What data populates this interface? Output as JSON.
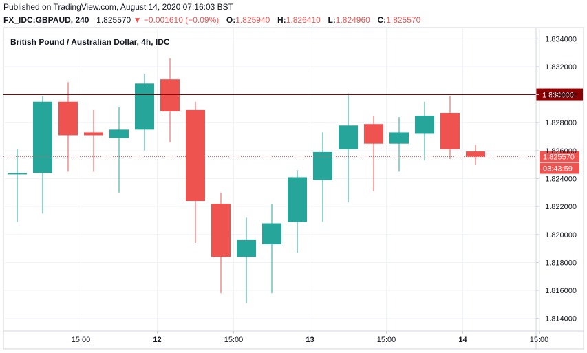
{
  "header": {
    "published": "Published on TradingView.com, August 14, 2020 07:16:03 BST",
    "symbol": "FX_IDC:GBPAUD, 240",
    "last": "1.825570",
    "arrow": "▼",
    "change": "−0.001610 (−0.09%)",
    "o_label": "O:",
    "o_value": "1.825940",
    "h_label": "H:",
    "h_value": "1.826410",
    "l_label": "L:",
    "l_value": "1.824960",
    "c_label": "C:",
    "c_value": "1.825570"
  },
  "colors": {
    "up": "#26a69a",
    "down": "#ef5350",
    "level_line": "#8b0000",
    "grid": "#f0f3fa",
    "axis": "#d1d4dc"
  },
  "chart_data": {
    "type": "candlestick",
    "title": "British Pound / Australian Dollar, 4h, IDC",
    "ylim": [
      1.8131,
      1.8348
    ],
    "y_ticks": [
      "1.834000",
      "1.832000",
      "1.830000",
      "1.828000",
      "1.826000",
      "1.824000",
      "1.822000",
      "1.820000",
      "1.818000",
      "1.816000",
      "1.814000"
    ],
    "x_ticks": [
      {
        "label": "15:00",
        "day": false,
        "index": 2.5
      },
      {
        "label": "12",
        "day": true,
        "index": 5.5
      },
      {
        "label": "15:00",
        "day": false,
        "index": 8.5
      },
      {
        "label": "13",
        "day": true,
        "index": 11.5
      },
      {
        "label": "15:00",
        "day": false,
        "index": 14.5
      },
      {
        "label": "14",
        "day": true,
        "index": 17.5
      },
      {
        "label": "15:00",
        "day": false,
        "index": 20.5
      }
    ],
    "candles": [
      {
        "o": 1.8243,
        "h": 1.8261,
        "l": 1.8209,
        "c": 1.8244
      },
      {
        "o": 1.8244,
        "h": 1.8299,
        "l": 1.8215,
        "c": 1.8295
      },
      {
        "o": 1.8295,
        "h": 1.8309,
        "l": 1.8245,
        "c": 1.8271
      },
      {
        "o": 1.8273,
        "h": 1.8289,
        "l": 1.8245,
        "c": 1.8271
      },
      {
        "o": 1.8269,
        "h": 1.8291,
        "l": 1.823,
        "c": 1.8275
      },
      {
        "o": 1.8275,
        "h": 1.8315,
        "l": 1.826,
        "c": 1.8308
      },
      {
        "o": 1.8311,
        "h": 1.8326,
        "l": 1.8266,
        "c": 1.8288
      },
      {
        "o": 1.8289,
        "h": 1.8295,
        "l": 1.8194,
        "c": 1.8224
      },
      {
        "o": 1.8222,
        "h": 1.823,
        "l": 1.8158,
        "c": 1.8184
      },
      {
        "o": 1.8184,
        "h": 1.8212,
        "l": 1.8151,
        "c": 1.8196
      },
      {
        "o": 1.8193,
        "h": 1.8222,
        "l": 1.8158,
        "c": 1.8208
      },
      {
        "o": 1.8209,
        "h": 1.8246,
        "l": 1.8187,
        "c": 1.8241
      },
      {
        "o": 1.8239,
        "h": 1.8273,
        "l": 1.8209,
        "c": 1.8259
      },
      {
        "o": 1.8261,
        "h": 1.8301,
        "l": 1.8223,
        "c": 1.8278
      },
      {
        "o": 1.8279,
        "h": 1.8285,
        "l": 1.8231,
        "c": 1.8265
      },
      {
        "o": 1.8265,
        "h": 1.8284,
        "l": 1.8245,
        "c": 1.8273
      },
      {
        "o": 1.8272,
        "h": 1.8295,
        "l": 1.8253,
        "c": 1.8285
      },
      {
        "o": 1.8287,
        "h": 1.8299,
        "l": 1.8254,
        "c": 1.8261
      },
      {
        "o": 1.82594,
        "h": 1.82641,
        "l": 1.82496,
        "c": 1.82557
      }
    ],
    "horizontal_level": {
      "value": 1.83,
      "label": "1.830000"
    },
    "last_price": {
      "value": 1.82557,
      "label": "1.825570",
      "countdown": "03:43:59"
    },
    "grid": true
  }
}
